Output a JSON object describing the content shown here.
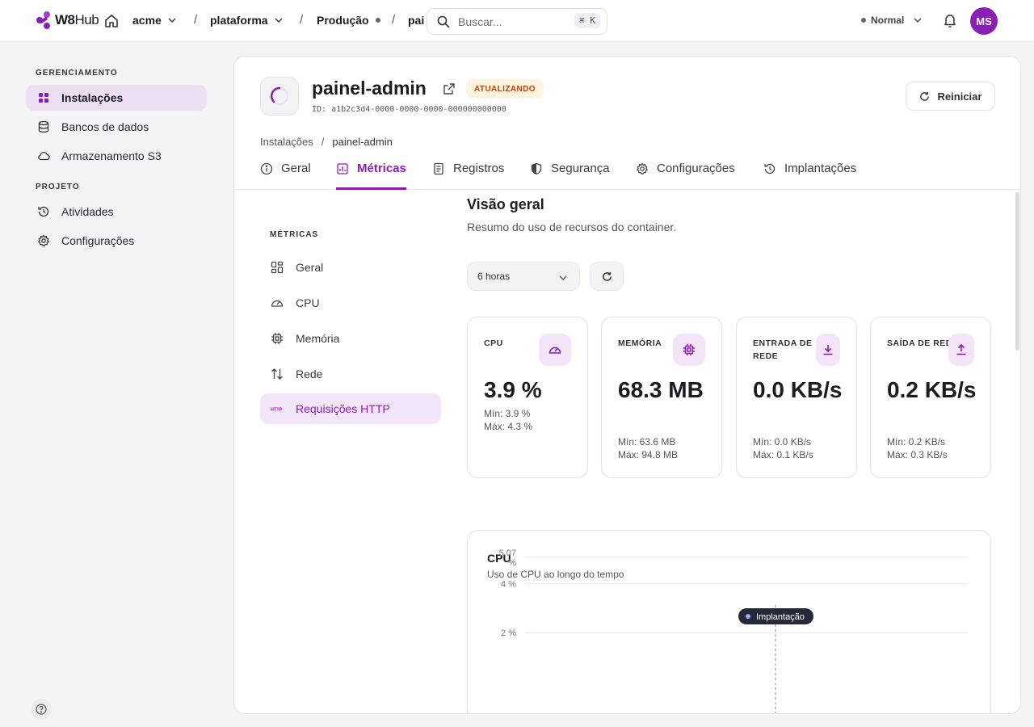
{
  "brand": {
    "name_a": "W8",
    "name_b": "Hub"
  },
  "breadcrumbs": {
    "org": "acme",
    "project": "plataforma",
    "env": "Produção",
    "app_truncated": "pai"
  },
  "search": {
    "placeholder": "Buscar...",
    "shortcut": "⌘ K"
  },
  "mode": {
    "label": "Normal"
  },
  "user": {
    "initials": "MS"
  },
  "sidebar": {
    "section_manage": "GERENCIAMENTO",
    "section_project": "PROJETO",
    "items": [
      {
        "label": "Instalações",
        "icon": "grid-icon",
        "active": true
      },
      {
        "label": "Bancos de dados",
        "icon": "database-icon"
      },
      {
        "label": "Armazenamento S3",
        "icon": "cloud-icon"
      },
      {
        "label": "Atividades",
        "icon": "history-icon"
      },
      {
        "label": "Configurações",
        "icon": "gear-icon"
      }
    ]
  },
  "app": {
    "name": "painel-admin",
    "status": "ATUALIZANDO",
    "id": "ID: a1b2c3d4-0000-0000-0000-000000000000",
    "restart_label": "Reiniciar",
    "breadcrumb_root": "Instalações",
    "breadcrumb_current": "painel-admin"
  },
  "tabs": [
    {
      "label": "Geral",
      "icon": "info-icon"
    },
    {
      "label": "Métricas",
      "icon": "chart-icon",
      "active": true
    },
    {
      "label": "Registros",
      "icon": "document-icon"
    },
    {
      "label": "Segurança",
      "icon": "shield-icon"
    },
    {
      "label": "Configurações",
      "icon": "gear-icon"
    },
    {
      "label": "Implantações",
      "icon": "history-icon"
    }
  ],
  "subnav": {
    "title": "MÉTRICAS",
    "items": [
      {
        "label": "Geral",
        "icon": "dashboard-icon"
      },
      {
        "label": "CPU",
        "icon": "gauge-icon"
      },
      {
        "label": "Memória",
        "icon": "chip-icon"
      },
      {
        "label": "Rede",
        "icon": "arrows-updown-icon"
      },
      {
        "label": "Requisições HTTP",
        "icon": "http-icon",
        "active": true
      }
    ]
  },
  "overview": {
    "title": "Visão geral",
    "subtitle": "Resumo do uso de recursos do container.",
    "range": "6 horas"
  },
  "metrics": [
    {
      "label": "CPU",
      "value": "3.9 %",
      "min": "Mín: 3.9 %",
      "max": "Máx: 4.3 %",
      "icon": "gauge-icon"
    },
    {
      "label": "MEMÓRIA",
      "value": "68.3 MB",
      "min": "Mín: 63.6 MB",
      "max": "Máx: 94.8 MB",
      "icon": "chip-icon"
    },
    {
      "label": "ENTRADA DE REDE",
      "value": "0.0 KB/s",
      "min": "Mín: 0.0 KB/s",
      "max": "Máx: 0.1 KB/s",
      "icon": "download-icon"
    },
    {
      "label": "SAÍDA DE REDE",
      "value": "0.2 KB/s",
      "min": "Mín: 0.2 KB/s",
      "max": "Máx: 0.3 KB/s",
      "icon": "upload-icon"
    }
  ],
  "cpu_chart": {
    "title": "CPU",
    "subtitle": "Uso de CPU ao longo do tempo",
    "deploy_label": "Implantação",
    "ticks": [
      {
        "value": 5.07,
        "label_a": "5.07",
        "label_b": "%"
      },
      {
        "value": 4,
        "label_a": "4 %"
      },
      {
        "value": 2,
        "label_a": "2 %"
      }
    ]
  },
  "colors": {
    "accent": "#8a1fb5",
    "badge_text": "#c2410c",
    "badge_bg": "#fff4e0"
  }
}
